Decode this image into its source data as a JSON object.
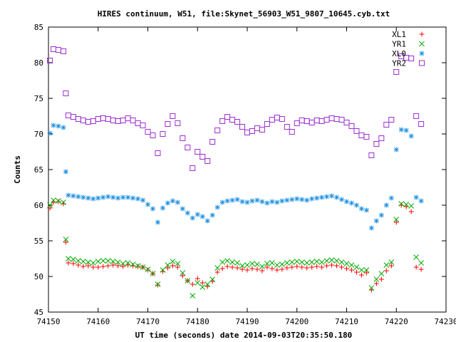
{
  "chart_data": {
    "type": "scatter",
    "title": "HIRES continuum, W51, file:Skynet_56903_W51_9807_10645.cyb.txt",
    "xlabel": "UT time (seconds) date 2014-09-03T20:35:50.180",
    "ylabel": "Counts",
    "xlim": [
      74150,
      74230
    ],
    "ylim": [
      45,
      85
    ],
    "xticks": [
      74150,
      74160,
      74170,
      74180,
      74190,
      74200,
      74210,
      74220,
      74230
    ],
    "yticks": [
      45,
      50,
      55,
      60,
      65,
      70,
      75,
      80,
      85
    ],
    "grid": false,
    "legend_position": "top-right",
    "series": [
      {
        "name": "XL1",
        "marker": "plus",
        "color": "#ff0000",
        "x": [
          74150.3,
          74151,
          74152,
          74153,
          74153.5,
          74154,
          74155,
          74156,
          74157,
          74158,
          74159,
          74160,
          74161,
          74162,
          74163,
          74164,
          74165,
          74166,
          74167,
          74168,
          74169,
          74170,
          74171,
          74172,
          74173,
          74174,
          74175,
          74176,
          74177,
          74178,
          74179,
          74180,
          74181,
          74182,
          74183,
          74184,
          74185,
          74186,
          74187,
          74188,
          74189,
          74190,
          74191,
          74192,
          74193,
          74194,
          74195,
          74196,
          74197,
          74198,
          74199,
          74200,
          74201,
          74202,
          74203,
          74204,
          74205,
          74206,
          74207,
          74208,
          74209,
          74210,
          74211,
          74212,
          74213,
          74214,
          74215,
          74216,
          74217,
          74218,
          74219,
          74220,
          74221,
          74222,
          74223,
          74224,
          74225
        ],
        "y": [
          59.6,
          60.4,
          60.5,
          60.2,
          54.8,
          51.9,
          51.8,
          51.6,
          51.4,
          51.5,
          51.3,
          51.3,
          51.4,
          51.5,
          51.6,
          51.5,
          51.4,
          51.6,
          51.5,
          51.4,
          51.3,
          50.9,
          50.4,
          48.8,
          50.7,
          51.2,
          51.5,
          51.3,
          50.1,
          49.4,
          48.9,
          49.7,
          49.1,
          48.6,
          49.3,
          50.6,
          51.1,
          51.4,
          51.3,
          51.2,
          51.0,
          50.9,
          51.1,
          51.0,
          50.8,
          51.3,
          51.1,
          50.9,
          51.0,
          51.2,
          51.3,
          51.4,
          51.3,
          51.2,
          51.3,
          51.4,
          51.3,
          51.5,
          51.6,
          51.5,
          51.3,
          51.1,
          50.9,
          50.6,
          50.2,
          50.5,
          48.1,
          49.0,
          49.6,
          50.8,
          51.5,
          57.6,
          60.0,
          59.8,
          59.1,
          51.3,
          51.0
        ]
      },
      {
        "name": "YR1",
        "marker": "cross",
        "color": "#00aa00",
        "x": [
          74150.3,
          74151,
          74152,
          74153,
          74153.5,
          74154,
          74155,
          74156,
          74157,
          74158,
          74159,
          74160,
          74161,
          74162,
          74163,
          74164,
          74165,
          74166,
          74167,
          74168,
          74169,
          74170,
          74171,
          74172,
          74173,
          74174,
          74175,
          74176,
          74177,
          74178,
          74179,
          74180,
          74181,
          74182,
          74183,
          74184,
          74185,
          74186,
          74187,
          74188,
          74189,
          74190,
          74191,
          74192,
          74193,
          74194,
          74195,
          74196,
          74197,
          74198,
          74199,
          74200,
          74201,
          74202,
          74203,
          74204,
          74205,
          74206,
          74207,
          74208,
          74209,
          74210,
          74211,
          74212,
          74213,
          74214,
          74215,
          74216,
          74217,
          74218,
          74219,
          74220,
          74221,
          74222,
          74223,
          74224,
          74225
        ],
        "y": [
          60.0,
          60.7,
          60.6,
          60.4,
          55.2,
          52.5,
          52.4,
          52.2,
          52.1,
          52.0,
          51.9,
          52.1,
          52.2,
          52.2,
          52.1,
          52.0,
          51.8,
          51.9,
          51.7,
          51.5,
          51.3,
          51.0,
          50.4,
          48.9,
          50.9,
          51.6,
          52.1,
          51.8,
          50.5,
          49.4,
          47.3,
          49.1,
          48.5,
          48.9,
          49.6,
          51.2,
          52.0,
          52.2,
          52.0,
          51.9,
          51.5,
          51.6,
          51.8,
          51.7,
          51.4,
          51.8,
          51.9,
          51.6,
          51.7,
          51.9,
          52.0,
          52.1,
          52.0,
          51.9,
          52.0,
          52.1,
          52.0,
          52.2,
          52.3,
          52.2,
          52.0,
          51.8,
          51.6,
          51.3,
          50.9,
          50.9,
          48.4,
          49.6,
          50.4,
          51.6,
          52.0,
          58.0,
          60.2,
          60.1,
          59.9,
          52.7,
          51.9
        ]
      },
      {
        "name": "XL0",
        "marker": "star",
        "color": "#1a8fe0",
        "x": [
          74150.3,
          74151,
          74152,
          74153,
          74153.5,
          74154,
          74155,
          74156,
          74157,
          74158,
          74159,
          74160,
          74161,
          74162,
          74163,
          74164,
          74165,
          74166,
          74167,
          74168,
          74169,
          74170,
          74171,
          74172,
          74173,
          74174,
          74175,
          74176,
          74177,
          74178,
          74179,
          74180,
          74181,
          74182,
          74183,
          74184,
          74185,
          74186,
          74187,
          74188,
          74189,
          74190,
          74191,
          74192,
          74193,
          74194,
          74195,
          74196,
          74197,
          74198,
          74199,
          74200,
          74201,
          74202,
          74203,
          74204,
          74205,
          74206,
          74207,
          74208,
          74209,
          74210,
          74211,
          74212,
          74213,
          74214,
          74215,
          74216,
          74217,
          74218,
          74219,
          74220,
          74221,
          74222,
          74223,
          74224,
          74225
        ],
        "y": [
          70.1,
          71.2,
          71.1,
          70.9,
          64.7,
          61.4,
          61.3,
          61.2,
          61.1,
          61.0,
          60.9,
          61.0,
          61.1,
          61.2,
          61.1,
          61.0,
          61.1,
          61.1,
          61.0,
          60.9,
          60.7,
          60.1,
          59.5,
          57.6,
          59.6,
          60.3,
          60.6,
          60.4,
          59.5,
          58.9,
          58.2,
          58.7,
          58.4,
          57.8,
          58.6,
          59.7,
          60.4,
          60.6,
          60.7,
          60.8,
          60.5,
          60.4,
          60.6,
          60.7,
          60.5,
          60.3,
          60.5,
          60.4,
          60.6,
          60.7,
          60.8,
          60.9,
          60.8,
          60.7,
          60.9,
          61.0,
          61.1,
          61.2,
          61.3,
          61.1,
          60.8,
          60.5,
          60.3,
          60.0,
          59.5,
          59.3,
          56.8,
          57.8,
          58.6,
          60.0,
          61.0,
          67.8,
          70.6,
          70.5,
          69.7,
          61.1,
          60.6
        ]
      },
      {
        "name": "YR2",
        "marker": "square",
        "color": "#9b30d0",
        "x": [
          74150.3,
          74151,
          74152,
          74153,
          74153.5,
          74154,
          74155,
          74156,
          74157,
          74158,
          74159,
          74160,
          74161,
          74162,
          74163,
          74164,
          74165,
          74166,
          74167,
          74168,
          74169,
          74170,
          74171,
          74172,
          74173,
          74174,
          74175,
          74176,
          74177,
          74178,
          74179,
          74180,
          74181,
          74182,
          74183,
          74184,
          74185,
          74186,
          74187,
          74188,
          74189,
          74190,
          74191,
          74192,
          74193,
          74194,
          74195,
          74196,
          74197,
          74198,
          74199,
          74200,
          74201,
          74202,
          74203,
          74204,
          74205,
          74206,
          74207,
          74208,
          74209,
          74210,
          74211,
          74212,
          74213,
          74214,
          74215,
          74216,
          74217,
          74218,
          74219,
          74220,
          74221,
          74222,
          74223,
          74224,
          74225
        ],
        "y": [
          80.3,
          81.9,
          81.8,
          81.6,
          75.7,
          72.6,
          72.4,
          72.1,
          71.9,
          71.7,
          71.8,
          72.1,
          72.2,
          72.1,
          71.9,
          71.8,
          71.9,
          72.2,
          71.9,
          71.5,
          71.2,
          70.3,
          69.8,
          67.3,
          70.0,
          71.4,
          72.5,
          71.5,
          69.4,
          68.1,
          65.2,
          67.5,
          66.8,
          66.2,
          68.9,
          70.5,
          71.8,
          72.4,
          72.0,
          71.7,
          71.0,
          70.2,
          70.4,
          70.8,
          70.6,
          71.4,
          72.0,
          72.3,
          72.1,
          71.0,
          70.3,
          71.5,
          71.9,
          71.8,
          71.6,
          71.9,
          71.8,
          72.0,
          72.2,
          72.1,
          72.0,
          71.6,
          71.1,
          70.4,
          69.8,
          69.6,
          67.0,
          68.6,
          69.4,
          71.3,
          72.0,
          78.7,
          80.9,
          80.7,
          80.6,
          72.5,
          71.4
        ]
      }
    ]
  }
}
